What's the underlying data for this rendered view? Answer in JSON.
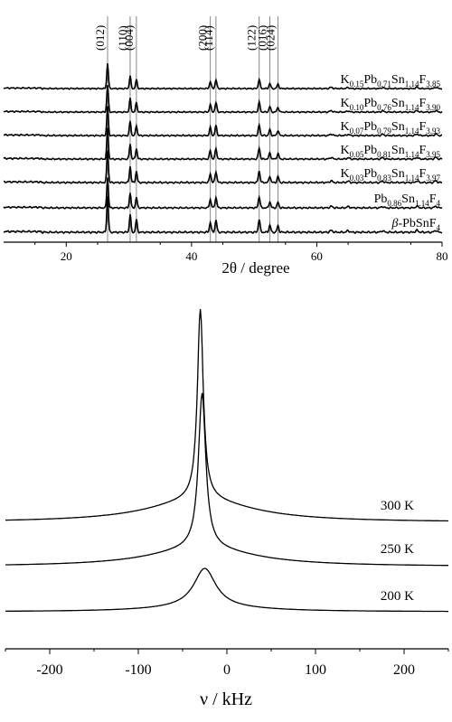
{
  "chart_data": [
    {
      "type": "line",
      "xlabel": "2θ / degree",
      "xlim": [
        10,
        80
      ],
      "x_ticks": [
        "20",
        "40",
        "60",
        "80"
      ],
      "reflections": [
        {
          "label": "(012)",
          "x": 26.6
        },
        {
          "label": "(110)",
          "x": 30.2
        },
        {
          "label": "(004)",
          "x": 31.2
        },
        {
          "label": "(200)",
          "x": 43.0
        },
        {
          "label": "(114)",
          "x": 43.9
        },
        {
          "label": "(122)",
          "x": 50.8
        },
        {
          "label": "(016)",
          "x": 52.5
        },
        {
          "label": "(024)",
          "x": 53.8
        }
      ],
      "series": [
        {
          "name": "K0.15Pb0.71Sn1.14F3.85",
          "label": {
            "base": "K",
            "parts": [
              [
                "0.15",
                "Pb"
              ],
              [
                "0.71",
                "Sn"
              ],
              [
                "1.14",
                "F"
              ],
              [
                "3.85",
                ""
              ]
            ]
          }
        },
        {
          "name": "K0.10Pb0.76Sn1.14F3.90",
          "label": {
            "base": "K",
            "parts": [
              [
                "0.10",
                "Pb"
              ],
              [
                "0.76",
                "Sn"
              ],
              [
                "1.14",
                "F"
              ],
              [
                "3.90",
                ""
              ]
            ]
          }
        },
        {
          "name": "K0.07Pb0.79Sn1.14F3.93",
          "label": {
            "base": "K",
            "parts": [
              [
                "0.07",
                "Pb"
              ],
              [
                "0.79",
                "Sn"
              ],
              [
                "1.14",
                "F"
              ],
              [
                "3.93",
                ""
              ]
            ]
          }
        },
        {
          "name": "K0.05Pb0.81Sn1.14F3.95",
          "label": {
            "base": "K",
            "parts": [
              [
                "0.05",
                "Pb"
              ],
              [
                "0.81",
                "Sn"
              ],
              [
                "1.14",
                "F"
              ],
              [
                "3.95",
                ""
              ]
            ]
          }
        },
        {
          "name": "K0.03Pb0.83Sn1.14F3.97",
          "label": {
            "base": "K",
            "parts": [
              [
                "0.03",
                "Pb"
              ],
              [
                "0.83",
                "Sn"
              ],
              [
                "1.14",
                "F"
              ],
              [
                "3.97",
                ""
              ]
            ]
          }
        },
        {
          "name": "Pb0.86Sn1.14F4",
          "label": {
            "base": "Pb",
            "parts": [
              [
                "0.86",
                "Sn"
              ],
              [
                "1.14",
                "F"
              ],
              [
                "4",
                ""
              ]
            ]
          }
        },
        {
          "name": "β-PbSnF4",
          "label": {
            "base": "β-PbSnF",
            "parts": [
              [
                "4",
                ""
              ]
            ]
          }
        }
      ]
    },
    {
      "type": "line",
      "xlabel": "ν / kHz",
      "xlim": [
        -250,
        250
      ],
      "x_ticks": [
        "-200",
        "-100",
        "0",
        "100",
        "200"
      ],
      "series": [
        {
          "name": "300 K",
          "peak_x": -30,
          "width": 4
        },
        {
          "name": "250 K",
          "peak_x": -28,
          "width": 5
        },
        {
          "name": "200 K",
          "peak_x": -25,
          "width": 15
        }
      ]
    }
  ]
}
